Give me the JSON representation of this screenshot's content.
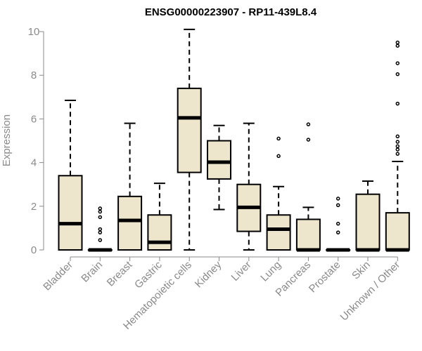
{
  "chart_data": {
    "type": "box",
    "title": "ENSG00000223907 - RP11-439L8.4",
    "xlabel": "",
    "ylabel": "Expression",
    "ylim": [
      0,
      10
    ],
    "yticks": [
      0,
      2,
      4,
      6,
      8,
      10
    ],
    "box_fill": "#ede6cc",
    "categories": [
      "Bladder",
      "Brain",
      "Breast",
      "Gastric",
      "Hematopoietic cells",
      "Kidney",
      "Liver",
      "Lung",
      "Pancreas",
      "Prostate",
      "Skin",
      "Unknown / Other"
    ],
    "boxes": [
      {
        "min": 0,
        "q1": 0,
        "median": 1.2,
        "q3": 3.4,
        "max": 6.85,
        "outliers": []
      },
      {
        "min": 0,
        "q1": 0,
        "median": 0,
        "q3": 0,
        "max": 0,
        "outliers": [
          0.45,
          0.8,
          0.95,
          1.5,
          1.75,
          1.9
        ]
      },
      {
        "min": 0,
        "q1": 0,
        "median": 1.35,
        "q3": 2.45,
        "max": 5.8,
        "outliers": []
      },
      {
        "min": 0,
        "q1": 0,
        "median": 0.35,
        "q3": 1.6,
        "max": 3.05,
        "outliers": []
      },
      {
        "min": 0,
        "q1": 3.55,
        "median": 6.05,
        "q3": 7.4,
        "max": 10.1,
        "outliers": []
      },
      {
        "min": 1.85,
        "q1": 3.25,
        "median": 4.02,
        "q3": 5.0,
        "max": 5.7,
        "outliers": []
      },
      {
        "min": 0,
        "q1": 0.85,
        "median": 1.95,
        "q3": 3.0,
        "max": 5.8,
        "outliers": []
      },
      {
        "min": 0,
        "q1": 0,
        "median": 0.95,
        "q3": 1.6,
        "max": 2.9,
        "outliers": [
          4.3,
          5.1
        ]
      },
      {
        "min": 0,
        "q1": 0,
        "median": 0,
        "q3": 1.4,
        "max": 1.95,
        "outliers": [
          5.05,
          5.75
        ]
      },
      {
        "min": 0,
        "q1": 0,
        "median": 0,
        "q3": 0,
        "max": 0,
        "outliers": [
          0.8,
          1.2,
          2.05,
          2.35
        ]
      },
      {
        "min": 0,
        "q1": 0,
        "median": 0,
        "q3": 2.55,
        "max": 3.15,
        "outliers": []
      },
      {
        "min": 0,
        "q1": 0,
        "median": 0,
        "q3": 1.7,
        "max": 4.05,
        "outliers": [
          4.4,
          4.6,
          4.75,
          4.95,
          5.2,
          6.7,
          8.05,
          8.55,
          9.35,
          9.5
        ]
      }
    ]
  }
}
